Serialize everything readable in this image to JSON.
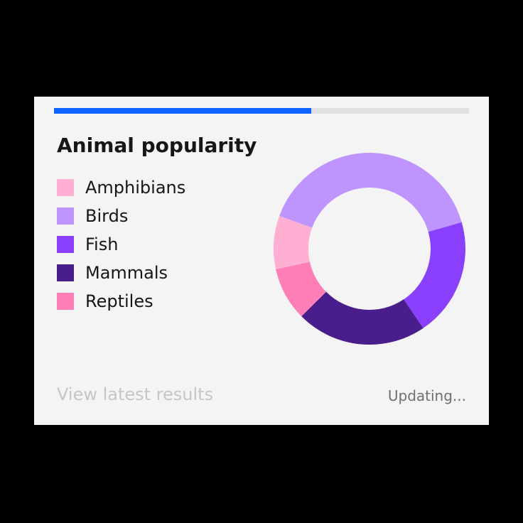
{
  "card": {
    "progress_percent": 62,
    "progress_color": "#0f62fe",
    "title": "Animal popularity",
    "view_link": "View latest results",
    "status": "Updating..."
  },
  "chart_data": {
    "type": "pie",
    "title": "Animal popularity",
    "legend_position": "left",
    "donut": true,
    "start_angle_deg": 290,
    "categories": [
      "Amphibians",
      "Birds",
      "Fish",
      "Mammals",
      "Reptiles"
    ],
    "values": [
      9,
      40,
      20,
      22,
      9
    ],
    "series_order": [
      "Birds",
      "Fish",
      "Mammals",
      "Reptiles",
      "Amphibians"
    ],
    "colors": {
      "Amphibians": "#ffafd2",
      "Birds": "#be95ff",
      "Fish": "#8a3ffc",
      "Mammals": "#491d8b",
      "Reptiles": "#ff7eb6"
    }
  }
}
